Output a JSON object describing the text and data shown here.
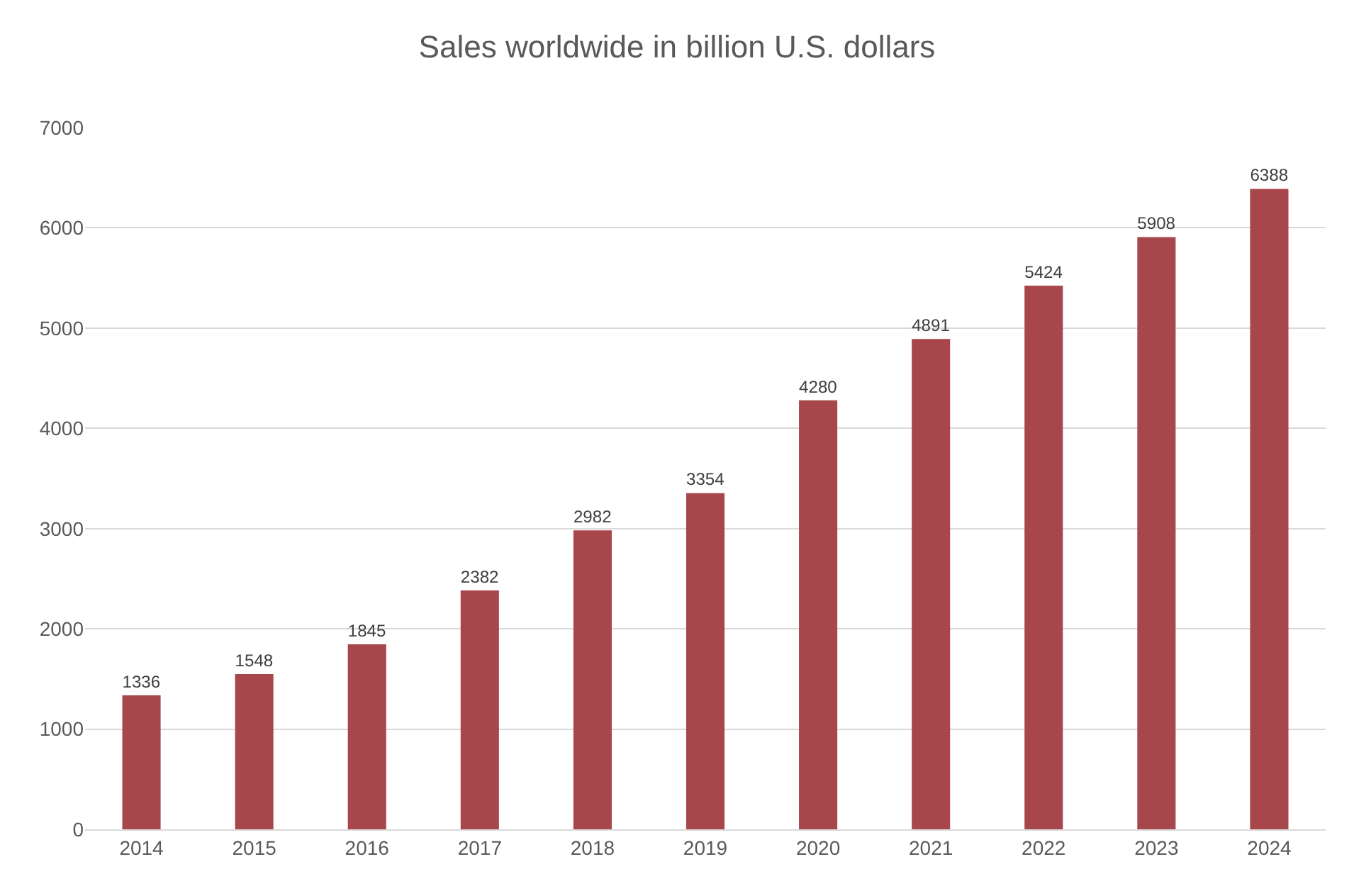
{
  "chart_data": {
    "type": "bar",
    "title": "Sales worldwide in billion U.S. dollars",
    "categories": [
      "2014",
      "2015",
      "2016",
      "2017",
      "2018",
      "2019",
      "2020",
      "2021",
      "2022",
      "2023",
      "2024"
    ],
    "values": [
      1336,
      1548,
      1845,
      2382,
      2982,
      3354,
      4280,
      4891,
      5424,
      5908,
      6388
    ],
    "color": "#a8474b",
    "ylim": [
      0,
      7000
    ],
    "yticks": [
      0,
      1000,
      2000,
      3000,
      4000,
      5000,
      6000,
      7000
    ],
    "grid": "y",
    "data_labels": true
  }
}
